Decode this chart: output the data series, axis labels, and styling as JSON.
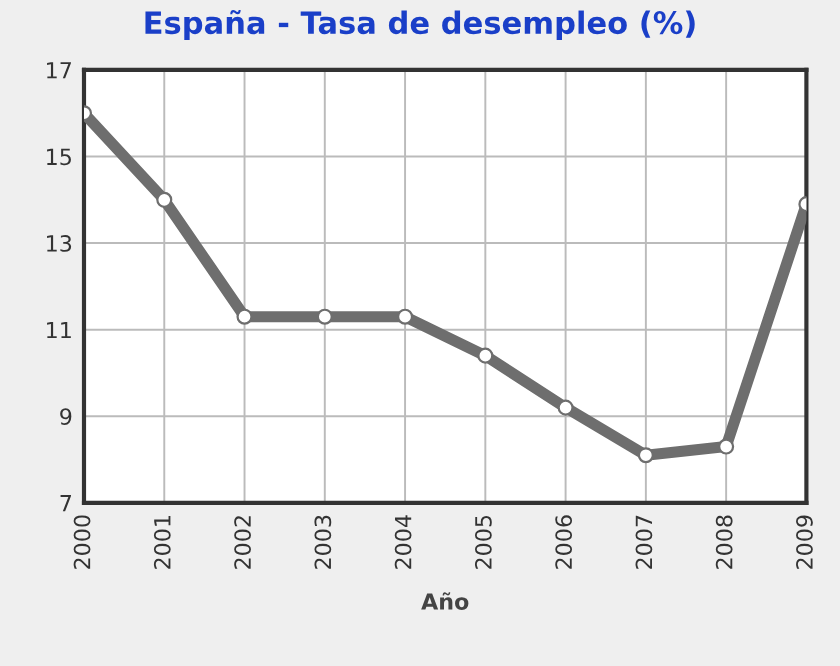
{
  "chart_data": {
    "type": "line",
    "title": "España - Tasa de desempleo (%)",
    "xlabel": "Año",
    "categories": [
      "2000",
      "2001",
      "2002",
      "2003",
      "2004",
      "2005",
      "2006",
      "2007",
      "2008",
      "2009"
    ],
    "series": [
      {
        "color": "#6e6e6e",
        "values": [
          16.0,
          14.0,
          11.3,
          11.3,
          11.3,
          10.4,
          9.2,
          8.1,
          8.3,
          13.9
        ]
      }
    ],
    "ylim": [
      7,
      17
    ],
    "yticks": [
      7,
      9,
      11,
      13,
      15,
      17
    ],
    "grid": true,
    "marker": "circle",
    "line_style": "solid"
  }
}
